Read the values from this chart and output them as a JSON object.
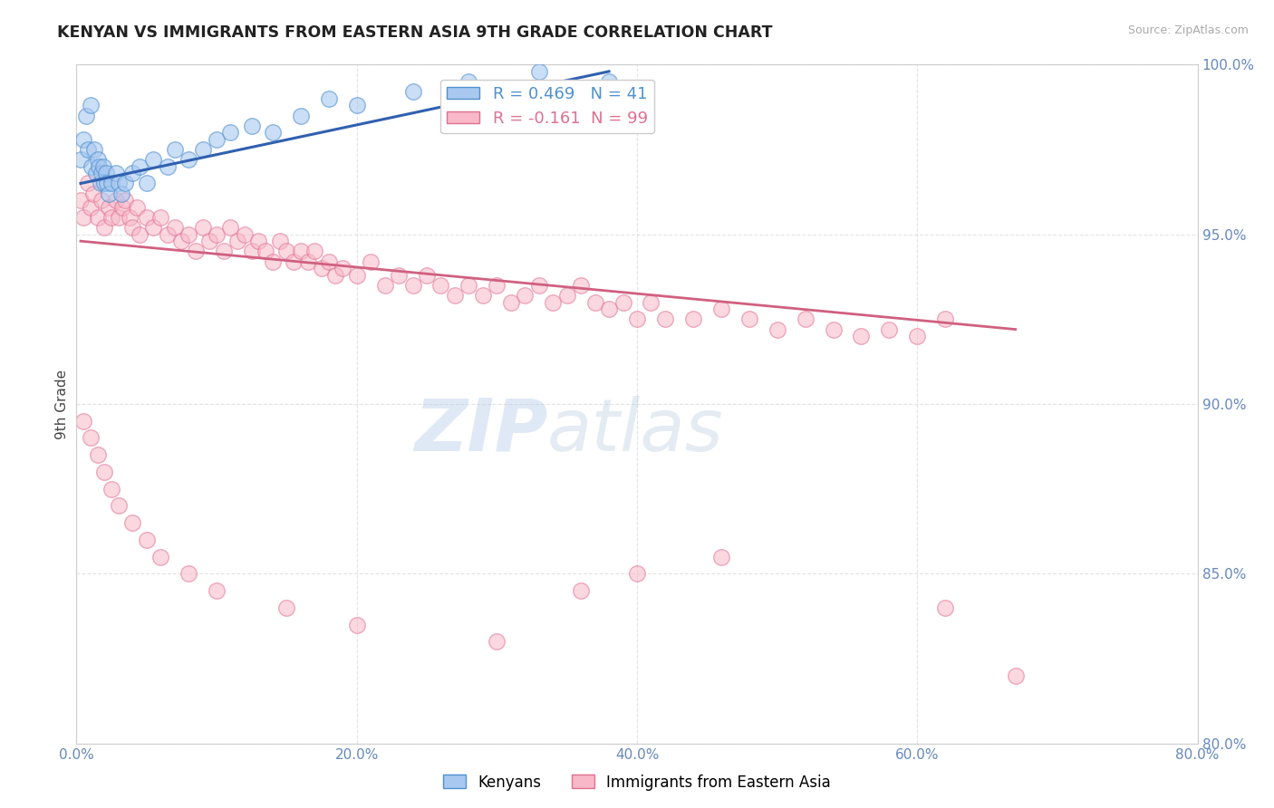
{
  "title": "KENYAN VS IMMIGRANTS FROM EASTERN ASIA 9TH GRADE CORRELATION CHART",
  "source_text": "Source: ZipAtlas.com",
  "ylabel": "9th Grade",
  "watermark": "ZIPatlas",
  "blue_label": "Kenyans",
  "pink_label": "Immigrants from Eastern Asia",
  "blue_R": 0.469,
  "blue_N": 41,
  "pink_R": -0.161,
  "pink_N": 99,
  "xlim": [
    0.0,
    80.0
  ],
  "ylim": [
    80.0,
    100.0
  ],
  "xticks": [
    0.0,
    20.0,
    40.0,
    60.0,
    80.0
  ],
  "yticks": [
    80.0,
    85.0,
    90.0,
    95.0,
    100.0
  ],
  "blue_face_color": "#A8C8F0",
  "blue_edge_color": "#5090D0",
  "pink_face_color": "#F8B8C8",
  "pink_edge_color": "#E07090",
  "blue_line_color": "#3060B0",
  "pink_line_color": "#D06080",
  "background_color": "#FFFFFF",
  "grid_color": "#DDDDDD",
  "title_color": "#222222",
  "tick_color": "#6688BB",
  "blue_scatter_x": [
    0.3,
    0.5,
    0.7,
    0.8,
    1.0,
    1.1,
    1.3,
    1.4,
    1.5,
    1.6,
    1.7,
    1.8,
    1.9,
    2.0,
    2.1,
    2.2,
    2.3,
    2.5,
    2.8,
    3.0,
    3.2,
    3.5,
    4.0,
    4.5,
    5.0,
    5.5,
    6.5,
    7.0,
    8.0,
    9.0,
    10.0,
    11.0,
    12.5,
    14.0,
    16.0,
    18.0,
    20.0,
    24.0,
    28.0,
    33.0,
    38.0
  ],
  "blue_scatter_y": [
    97.2,
    97.8,
    98.5,
    97.5,
    98.8,
    97.0,
    97.5,
    96.8,
    97.2,
    97.0,
    96.5,
    96.8,
    97.0,
    96.5,
    96.8,
    96.5,
    96.2,
    96.5,
    96.8,
    96.5,
    96.2,
    96.5,
    96.8,
    97.0,
    96.5,
    97.2,
    97.0,
    97.5,
    97.2,
    97.5,
    97.8,
    98.0,
    98.2,
    98.0,
    98.5,
    99.0,
    98.8,
    99.2,
    99.5,
    99.8,
    99.5
  ],
  "pink_scatter_x": [
    0.3,
    0.5,
    0.8,
    1.0,
    1.2,
    1.5,
    1.8,
    2.0,
    2.3,
    2.5,
    2.8,
    3.0,
    3.3,
    3.5,
    3.8,
    4.0,
    4.3,
    4.5,
    5.0,
    5.5,
    6.0,
    6.5,
    7.0,
    7.5,
    8.0,
    8.5,
    9.0,
    9.5,
    10.0,
    10.5,
    11.0,
    11.5,
    12.0,
    12.5,
    13.0,
    13.5,
    14.0,
    14.5,
    15.0,
    15.5,
    16.0,
    16.5,
    17.0,
    17.5,
    18.0,
    18.5,
    19.0,
    20.0,
    21.0,
    22.0,
    23.0,
    24.0,
    25.0,
    26.0,
    27.0,
    28.0,
    29.0,
    30.0,
    31.0,
    32.0,
    33.0,
    34.0,
    35.0,
    36.0,
    37.0,
    38.0,
    39.0,
    40.0,
    41.0,
    42.0,
    44.0,
    46.0,
    48.0,
    50.0,
    52.0,
    54.0,
    56.0,
    58.0,
    60.0,
    62.0,
    0.5,
    1.0,
    1.5,
    2.0,
    2.5,
    3.0,
    4.0,
    5.0,
    6.0,
    8.0,
    10.0,
    15.0,
    20.0,
    30.0,
    36.0,
    40.0,
    46.0,
    62.0,
    67.0
  ],
  "pink_scatter_y": [
    96.0,
    95.5,
    96.5,
    95.8,
    96.2,
    95.5,
    96.0,
    95.2,
    95.8,
    95.5,
    96.0,
    95.5,
    95.8,
    96.0,
    95.5,
    95.2,
    95.8,
    95.0,
    95.5,
    95.2,
    95.5,
    95.0,
    95.2,
    94.8,
    95.0,
    94.5,
    95.2,
    94.8,
    95.0,
    94.5,
    95.2,
    94.8,
    95.0,
    94.5,
    94.8,
    94.5,
    94.2,
    94.8,
    94.5,
    94.2,
    94.5,
    94.2,
    94.5,
    94.0,
    94.2,
    93.8,
    94.0,
    93.8,
    94.2,
    93.5,
    93.8,
    93.5,
    93.8,
    93.5,
    93.2,
    93.5,
    93.2,
    93.5,
    93.0,
    93.2,
    93.5,
    93.0,
    93.2,
    93.5,
    93.0,
    92.8,
    93.0,
    92.5,
    93.0,
    92.5,
    92.5,
    92.8,
    92.5,
    92.2,
    92.5,
    92.2,
    92.0,
    92.2,
    92.0,
    92.5,
    89.5,
    89.0,
    88.5,
    88.0,
    87.5,
    87.0,
    86.5,
    86.0,
    85.5,
    85.0,
    84.5,
    84.0,
    83.5,
    83.0,
    84.5,
    85.0,
    85.5,
    84.0,
    82.0
  ],
  "blue_trend_x": [
    0.3,
    38.0
  ],
  "blue_trend_y": [
    96.5,
    99.8
  ],
  "pink_trend_x": [
    0.3,
    67.0
  ],
  "pink_trend_y": [
    94.8,
    92.2
  ]
}
